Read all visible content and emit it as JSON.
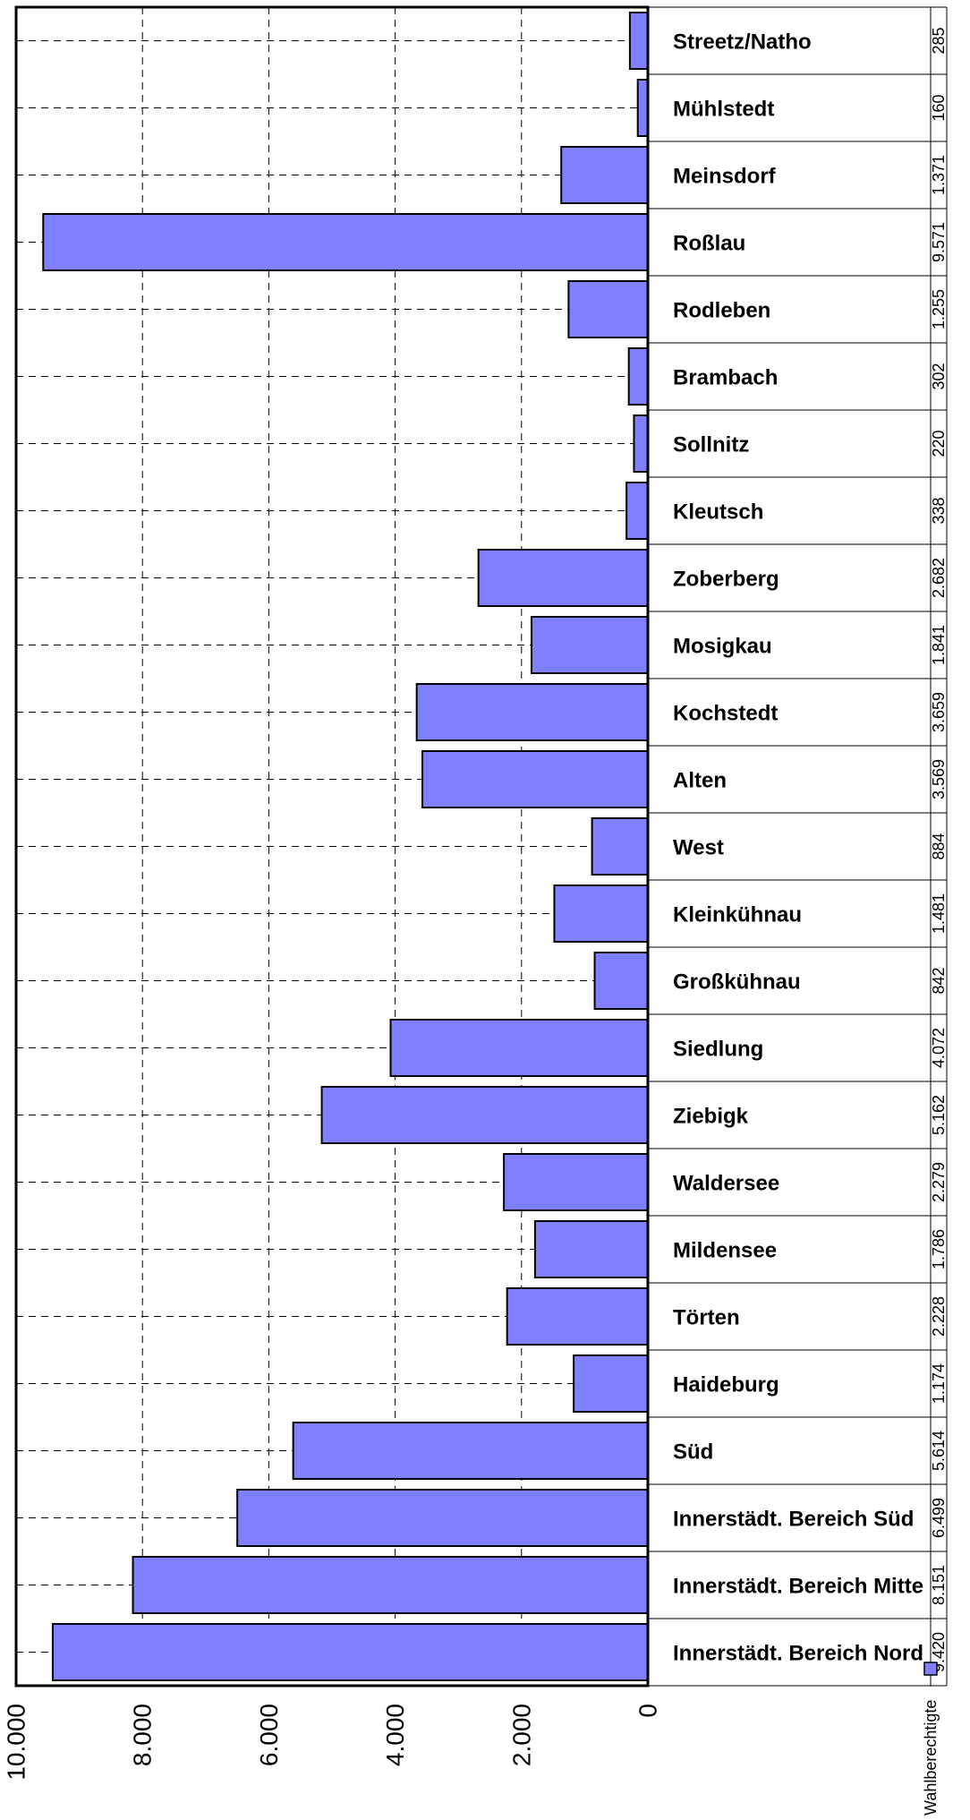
{
  "chart_data": {
    "type": "bar",
    "orientation": "horizontal",
    "categories": [
      "Streetz/Natho",
      "Mühlstedt",
      "Meinsdorf",
      "Roßlau",
      "Rodleben",
      "Brambach",
      "Sollnitz",
      "Kleutsch",
      "Zoberberg",
      "Mosigkau",
      "Kochstedt",
      "Alten",
      "West",
      "Kleinkühnau",
      "Großkühnau",
      "Siedlung",
      "Ziebigk",
      "Waldersee",
      "Mildensee",
      "Törten",
      "Haideburg",
      "Süd",
      "Innerstädt. Bereich Süd",
      "Innerstädt. Bereich Mitte",
      "Innerstädt. Bereich Nord"
    ],
    "value_labels": [
      "285",
      "160",
      "1.371",
      "9.571",
      "1.255",
      "302",
      "220",
      "338",
      "2.682",
      "1.841",
      "3.659",
      "3.569",
      "884",
      "1.481",
      "842",
      "4.072",
      "5.162",
      "2.279",
      "1.786",
      "2.228",
      "1.174",
      "5.614",
      "6.499",
      "8.151",
      "9.420"
    ],
    "series": [
      {
        "name": "Wahlberechtigte",
        "color": "#8080ff",
        "values": [
          285,
          160,
          1371,
          9571,
          1255,
          302,
          220,
          338,
          2682,
          1841,
          3659,
          3569,
          884,
          1481,
          842,
          4072,
          5162,
          2279,
          1786,
          2228,
          1174,
          5614,
          6499,
          8151,
          9420
        ]
      }
    ],
    "value_axis": {
      "range": [
        0,
        10000
      ],
      "tick_values": [
        0,
        2000,
        4000,
        6000,
        8000,
        10000
      ],
      "tick_labels": [
        "0",
        "2.000",
        "4.000",
        "6.000",
        "8.000",
        "10.000"
      ]
    },
    "grid": true,
    "legend": {
      "position": "bottom-right",
      "label": "Wahlberechtigte"
    }
  }
}
